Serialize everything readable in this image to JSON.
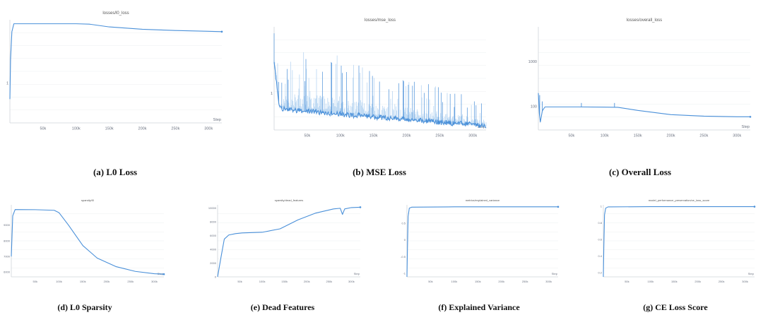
{
  "colors": {
    "line": "#4a90d9",
    "band": "#b9d6f2",
    "grid": "#eceff2",
    "axis": "#cfd4da",
    "caption": "#111111"
  },
  "chart_data": [
    {
      "id": "a",
      "type": "line",
      "title": "losses/l0_loss",
      "caption": "(a) L0 Loss",
      "xlabel": "Step",
      "xlim": [
        0,
        320000
      ],
      "ylim": [
        0,
        2.6
      ],
      "grid": true,
      "xticks": [
        50000,
        100000,
        150000,
        200000,
        250000,
        300000
      ],
      "xtick_labels": [
        "50k",
        "100k",
        "150k",
        "200k",
        "250k",
        "300k"
      ],
      "yticks": [
        1
      ],
      "ytick_labels": [
        "1"
      ],
      "series": [
        {
          "x": [
            0,
            1000,
            3000,
            6000,
            10000,
            50000,
            100000,
            120000,
            150000,
            200000,
            250000,
            300000,
            320000
          ],
          "y": [
            0.6,
            1.6,
            2.3,
            2.5,
            2.5,
            2.5,
            2.5,
            2.49,
            2.42,
            2.36,
            2.33,
            2.31,
            2.3
          ]
        }
      ]
    },
    {
      "id": "b",
      "type": "line",
      "title": "losses/mse_loss",
      "caption": "(b) MSE Loss",
      "xlabel": "Step",
      "xlim": [
        0,
        320000
      ],
      "ylim": [
        0.45,
        2.0
      ],
      "grid": true,
      "xticks": [
        50000,
        100000,
        150000,
        200000,
        250000,
        300000
      ],
      "xtick_labels": [
        "50k",
        "100k",
        "150k",
        "200k",
        "250k",
        "300k"
      ],
      "yticks": [
        1
      ],
      "ytick_labels": [
        "1"
      ],
      "noisy": true,
      "series": [
        {
          "x": [
            0,
            3000,
            8000,
            20000,
            60000,
            100000,
            150000,
            200000,
            250000,
            300000,
            320000
          ],
          "y": [
            1.45,
            1.2,
            0.78,
            0.75,
            0.72,
            0.68,
            0.64,
            0.6,
            0.56,
            0.52,
            0.5
          ],
          "spread": [
            0.45,
            0.4,
            0.35,
            0.7,
            0.75,
            0.7,
            0.6,
            0.55,
            0.45,
            0.35,
            0.25
          ]
        }
      ]
    },
    {
      "id": "c",
      "type": "line",
      "title": "losses/overall_loss",
      "caption": "(c) Overall Loss",
      "xlabel": "Step",
      "xlim": [
        0,
        320000
      ],
      "ylim": [
        30,
        6000
      ],
      "yscale": "log",
      "grid": true,
      "xticks": [
        50000,
        100000,
        150000,
        200000,
        250000,
        300000
      ],
      "xtick_labels": [
        "50k",
        "100k",
        "150k",
        "200k",
        "250k",
        "300k"
      ],
      "yticks": [
        100,
        1000
      ],
      "ytick_labels": [
        "100",
        "1000"
      ],
      "series": [
        {
          "x": [
            0,
            1500,
            3000,
            6000,
            10000,
            60000,
            100000,
            120000,
            150000,
            200000,
            250000,
            300000,
            320000
          ],
          "y": [
            200,
            70,
            45,
            80,
            98,
            98,
            97,
            96,
            82,
            66,
            61,
            59,
            59
          ],
          "spikes": [
            [
              2000,
              180
            ],
            [
              65000,
              120
            ],
            [
              115000,
              120
            ],
            [
              6000,
              130
            ]
          ]
        }
      ]
    },
    {
      "id": "d",
      "type": "line",
      "title": "sparsity/l0",
      "caption": "(d) L0 Sparsity",
      "xlabel": "Step",
      "xlim": [
        0,
        320000
      ],
      "ylim": [
        5700,
        10300
      ],
      "grid": true,
      "xticks": [
        50000,
        100000,
        150000,
        200000,
        250000,
        300000
      ],
      "xtick_labels": [
        "50k",
        "100k",
        "150k",
        "200k",
        "250k",
        "300k"
      ],
      "yticks": [
        6000,
        7000,
        8000,
        9000
      ],
      "ytick_labels": [
        "6000",
        "7000",
        "8000",
        "9000"
      ],
      "series": [
        {
          "x": [
            0,
            3000,
            8000,
            50000,
            90000,
            100000,
            120000,
            150000,
            180000,
            220000,
            260000,
            300000,
            320000
          ],
          "y": [
            7000,
            9600,
            10000,
            9990,
            9950,
            9800,
            9000,
            7700,
            6900,
            6350,
            6050,
            5900,
            5870
          ]
        }
      ]
    },
    {
      "id": "e",
      "type": "line",
      "title": "sparsity/dead_features",
      "caption": "(e) Dead Features",
      "xlabel": "Step",
      "xlim": [
        0,
        320000
      ],
      "ylim": [
        0,
        10500
      ],
      "grid": true,
      "xticks": [
        50000,
        100000,
        150000,
        200000,
        250000,
        300000
      ],
      "xtick_labels": [
        "50k",
        "100k",
        "150k",
        "200k",
        "250k",
        "300k"
      ],
      "yticks": [
        0,
        2000,
        4000,
        6000,
        8000,
        10000
      ],
      "ytick_labels": [
        "0",
        "2000",
        "4000",
        "6000",
        "8000",
        "10000"
      ],
      "series": [
        {
          "x": [
            0,
            8000,
            15000,
            25000,
            40000,
            55000,
            100000,
            140000,
            180000,
            220000,
            260000,
            275000,
            280000,
            285000,
            300000,
            320000
          ],
          "y": [
            0,
            3000,
            5500,
            6100,
            6300,
            6400,
            6500,
            7000,
            8300,
            9300,
            9900,
            10000,
            9100,
            9900,
            10100,
            10150
          ]
        }
      ]
    },
    {
      "id": "f",
      "type": "line",
      "title": "metrics/explained_variance",
      "caption": "(f) Explained Variance",
      "xlabel": "Step",
      "xlim": [
        0,
        320000
      ],
      "ylim": [
        -1.1,
        1.05
      ],
      "grid": true,
      "xticks": [
        50000,
        100000,
        150000,
        200000,
        250000,
        300000
      ],
      "xtick_labels": [
        "50k",
        "100k",
        "150k",
        "200k",
        "250k",
        "300k"
      ],
      "yticks": [
        -1,
        -0.5,
        0,
        0.5
      ],
      "ytick_labels": [
        "-1",
        "-0.5",
        "0",
        "0.5"
      ],
      "series": [
        {
          "x": [
            0,
            1000,
            2500,
            5000,
            10000,
            100000,
            200000,
            320000
          ],
          "y": [
            -1.1,
            -0.3,
            0.7,
            0.95,
            0.98,
            0.99,
            0.99,
            0.99
          ]
        }
      ]
    },
    {
      "id": "g",
      "type": "line",
      "title": "model_performance_preservation/ce_loss_score",
      "caption": "(g) CE Loss Score",
      "xlabel": "Step",
      "xlim": [
        0,
        320000
      ],
      "ylim": [
        0.15,
        1.02
      ],
      "grid": true,
      "xticks": [
        50000,
        100000,
        150000,
        200000,
        250000,
        300000
      ],
      "xtick_labels": [
        "50k",
        "100k",
        "150k",
        "200k",
        "250k",
        "300k"
      ],
      "yticks": [
        0.2,
        0.4,
        0.6,
        0.8,
        1
      ],
      "ytick_labels": [
        "0.2",
        "0.4",
        "0.6",
        "0.8",
        "1"
      ],
      "series": [
        {
          "x": [
            0,
            1000,
            2500,
            5000,
            10000,
            100000,
            200000,
            320000
          ],
          "y": [
            0.15,
            0.5,
            0.9,
            0.98,
            0.995,
            0.998,
            0.998,
            0.998
          ]
        }
      ]
    }
  ]
}
